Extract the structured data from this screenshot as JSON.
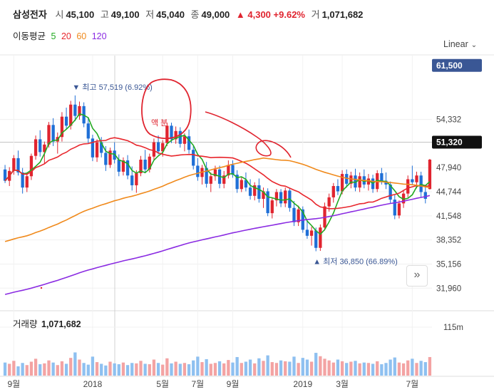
{
  "header": {
    "name": "삼성전자",
    "open_label": "시",
    "open": "45,100",
    "high_label": "고",
    "high": "49,100",
    "low_label": "저",
    "low": "45,040",
    "close_label": "종",
    "close": "49,000",
    "change": "▲ 4,300 +9.62%",
    "volume_label": "거",
    "volume": "1,071,682"
  },
  "ma_legend": {
    "title": "이동평균",
    "periods": [
      "5",
      "20",
      "60",
      "120"
    ],
    "colors": [
      "#22aa22",
      "#e8262c",
      "#f08a1c",
      "#8a2be2"
    ]
  },
  "scale_mode": "Linear",
  "volume_label": "거래량",
  "volume_value": "1,071,682",
  "annotation_text": "액 분",
  "expand_icon": "double-chevron-right-icon",
  "chart_data": {
    "type": "candlestick",
    "price_axis": {
      "ticks": [
        "54,332",
        "47,940",
        "44,744",
        "41,548",
        "38,352",
        "35,156",
        "31,960"
      ],
      "tick_values": [
        54332,
        47940,
        44744,
        41548,
        38352,
        35156,
        31960
      ],
      "range": [
        30000,
        62800
      ],
      "tag_high": "61,500",
      "tag_current": "51,320",
      "tag_high_value": 61500,
      "tag_current_value": 51320
    },
    "volume_axis": {
      "ticks": [
        "115m"
      ],
      "tick_values": [
        115
      ]
    },
    "x_axis_labels": [
      "9월",
      "2018",
      "5월",
      "7월",
      "9월",
      "2019",
      "3월",
      "7월"
    ],
    "max_marker": "▼ 최고 57,519 (6.92%)",
    "min_marker": "▲ 최저 36,850 (66.89%)",
    "max_value": 57519,
    "min_value": 36850,
    "colors": {
      "up": "#e0242f",
      "down": "#1f6fd6",
      "volume": "#8ec0f0",
      "volume_up": "#f3a3a3"
    },
    "grid": true,
    "candles": [
      [
        47700,
        48300,
        45900,
        46200
      ],
      [
        46200,
        48000,
        45500,
        47500
      ],
      [
        47500,
        49600,
        47000,
        49200
      ],
      [
        49200,
        50200,
        46900,
        47300
      ],
      [
        47300,
        47900,
        44500,
        45300
      ],
      [
        45300,
        47200,
        44700,
        46800
      ],
      [
        46800,
        49800,
        46300,
        49500
      ],
      [
        49500,
        52200,
        49000,
        51700
      ],
      [
        51700,
        52900,
        49400,
        50000
      ],
      [
        50000,
        51400,
        48500,
        51000
      ],
      [
        51000,
        54000,
        50600,
        53600
      ],
      [
        53600,
        54500,
        50800,
        51400
      ],
      [
        51400,
        52600,
        49800,
        52000
      ],
      [
        52000,
        55300,
        51400,
        54700
      ],
      [
        54700,
        55900,
        53000,
        53500
      ],
      [
        53500,
        56800,
        53000,
        56300
      ],
      [
        56300,
        57519,
        54100,
        54800
      ],
      [
        54800,
        56700,
        54300,
        56100
      ],
      [
        56100,
        56600,
        53300,
        53800
      ],
      [
        53800,
        54600,
        51100,
        51800
      ],
      [
        51800,
        52300,
        48800,
        49300
      ],
      [
        49300,
        51700,
        48700,
        51300
      ],
      [
        51300,
        52000,
        49300,
        49900
      ],
      [
        49900,
        50800,
        47500,
        48300
      ],
      [
        48300,
        50600,
        47900,
        50200
      ],
      [
        50200,
        51300,
        48500,
        49000
      ],
      [
        49000,
        49700,
        46800,
        47400
      ],
      [
        47400,
        49300,
        46900,
        48900
      ],
      [
        48900,
        49600,
        46400,
        46900
      ],
      [
        46900,
        48100,
        44900,
        45600
      ],
      [
        45600,
        47600,
        44600,
        47200
      ],
      [
        47200,
        49500,
        46800,
        49000
      ],
      [
        49000,
        50300,
        47200,
        47700
      ],
      [
        47700,
        49800,
        47300,
        49400
      ],
      [
        49400,
        51800,
        49000,
        51300
      ],
      [
        51300,
        52200,
        49700,
        50100
      ],
      [
        50100,
        51600,
        49400,
        51200
      ],
      [
        51200,
        53900,
        50800,
        53500
      ],
      [
        53500,
        53900,
        51200,
        51700
      ],
      [
        51700,
        53400,
        51100,
        52800
      ],
      [
        52800,
        53300,
        50600,
        51100
      ],
      [
        51100,
        52500,
        50100,
        52100
      ],
      [
        52100,
        53000,
        49800,
        50300
      ],
      [
        50300,
        50800,
        47700,
        48200
      ],
      [
        48200,
        49200,
        46200,
        46700
      ],
      [
        46700,
        48300,
        45700,
        47900
      ],
      [
        47900,
        48700,
        45300,
        45800
      ],
      [
        45800,
        47300,
        44700,
        46800
      ],
      [
        46800,
        48200,
        46200,
        47700
      ],
      [
        47700,
        48200,
        45200,
        45800
      ],
      [
        45800,
        47500,
        45200,
        46900
      ],
      [
        46900,
        48900,
        46500,
        48300
      ],
      [
        48300,
        48900,
        46600,
        47000
      ],
      [
        47000,
        47600,
        44600,
        45100
      ],
      [
        45100,
        46700,
        44700,
        46300
      ],
      [
        46300,
        47300,
        44800,
        45300
      ],
      [
        45300,
        46400,
        43700,
        44200
      ],
      [
        44200,
        46000,
        43600,
        45600
      ],
      [
        45600,
        46500,
        43300,
        43800
      ],
      [
        43800,
        45300,
        42600,
        44800
      ],
      [
        44800,
        45200,
        41500,
        41900
      ],
      [
        41900,
        44000,
        41200,
        43600
      ],
      [
        43600,
        45100,
        42800,
        44700
      ],
      [
        44700,
        45100,
        42700,
        43200
      ],
      [
        43200,
        45300,
        42700,
        44900
      ],
      [
        44900,
        45200,
        42100,
        42600
      ],
      [
        42600,
        43500,
        40200,
        40700
      ],
      [
        40700,
        42900,
        40200,
        42400
      ],
      [
        42400,
        42800,
        39300,
        39700
      ],
      [
        39700,
        40800,
        38500,
        38900
      ],
      [
        38900,
        40100,
        37600,
        39600
      ],
      [
        39600,
        40000,
        36850,
        37300
      ],
      [
        37300,
        40400,
        36900,
        40000
      ],
      [
        40000,
        43300,
        39600,
        42800
      ],
      [
        42800,
        44500,
        42100,
        44000
      ],
      [
        44000,
        45900,
        43300,
        45500
      ],
      [
        45500,
        46400,
        44300,
        44800
      ],
      [
        44800,
        47600,
        44400,
        47100
      ],
      [
        47100,
        47700,
        45300,
        45800
      ],
      [
        45800,
        47400,
        45200,
        46900
      ],
      [
        46900,
        47800,
        44800,
        45300
      ],
      [
        45300,
        47300,
        44700,
        46800
      ],
      [
        46800,
        47700,
        45200,
        45700
      ],
      [
        45700,
        47100,
        44900,
        46500
      ],
      [
        46500,
        47000,
        44600,
        45100
      ],
      [
        45100,
        47600,
        44700,
        47200
      ],
      [
        47200,
        47900,
        45700,
        46200
      ],
      [
        46200,
        47300,
        45100,
        45700
      ],
      [
        45700,
        46100,
        43200,
        43700
      ],
      [
        43700,
        44300,
        41100,
        41600
      ],
      [
        41600,
        43600,
        41200,
        43200
      ],
      [
        43200,
        45000,
        42600,
        44500
      ],
      [
        44500,
        46900,
        44000,
        46400
      ],
      [
        46400,
        48200,
        45600,
        46000
      ],
      [
        46000,
        47400,
        45200,
        46900
      ],
      [
        46900,
        47400,
        44000,
        44700
      ],
      [
        44700,
        45400,
        43200,
        43800
      ],
      [
        45100,
        49100,
        45040,
        49000
      ]
    ],
    "volumes": [
      31,
      28,
      35,
      22,
      30,
      25,
      33,
      40,
      27,
      29,
      36,
      31,
      25,
      34,
      28,
      42,
      55,
      38,
      30,
      26,
      45,
      32,
      28,
      24,
      33,
      29,
      27,
      31,
      25,
      30,
      29,
      35,
      28,
      27,
      38,
      30,
      26,
      41,
      29,
      33,
      28,
      30,
      27,
      36,
      45,
      32,
      39,
      28,
      30,
      34,
      29,
      37,
      31,
      44,
      30,
      33,
      38,
      29,
      41,
      35,
      48,
      32,
      30,
      36,
      34,
      33,
      45,
      30,
      42,
      38,
      33,
      54,
      46,
      40,
      36,
      31,
      38,
      34,
      30,
      33,
      35,
      29,
      31,
      30,
      28,
      34,
      27,
      30,
      38,
      43,
      31,
      29,
      36,
      40,
      30,
      35,
      32,
      44
    ],
    "ma_series": [
      "5",
      "20",
      "60",
      "120"
    ]
  }
}
